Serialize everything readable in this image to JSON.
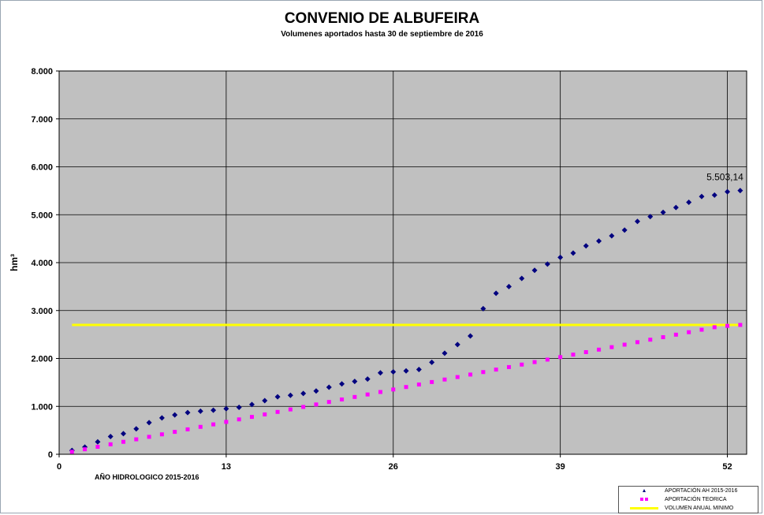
{
  "chart_data": {
    "type": "scatter",
    "title": "CONVENIO DE ALBUFEIRA",
    "subtitle": "Volumenes aportados hasta 30 de septiembre de 2016",
    "ylabel": "hm³",
    "xlabel": "AÑO HIDROLOGICO 2015-2016",
    "xlim": [
      0,
      53.5
    ],
    "ylim": [
      0,
      8000
    ],
    "x_ticks": [
      {
        "value": 0,
        "label": "0"
      },
      {
        "value": 13,
        "label": "13"
      },
      {
        "value": 26,
        "label": "26"
      },
      {
        "value": 39,
        "label": "39"
      },
      {
        "value": 52,
        "label": "52"
      }
    ],
    "y_ticks": [
      {
        "value": 0,
        "label": "0"
      },
      {
        "value": 1000,
        "label": "1.000"
      },
      {
        "value": 2000,
        "label": "2.000"
      },
      {
        "value": 3000,
        "label": "3.000"
      },
      {
        "value": 4000,
        "label": "4.000"
      },
      {
        "value": 5000,
        "label": "5.000"
      },
      {
        "value": 6000,
        "label": "6.000"
      },
      {
        "value": 7000,
        "label": "7.000"
      },
      {
        "value": 8000,
        "label": "8.000"
      }
    ],
    "grid": true,
    "plot_background": "#c0c0c0",
    "annotation": {
      "x": 53,
      "y": 5503.14,
      "text": "5.503,14"
    },
    "series": [
      {
        "name": "APORTACIÓN AH 2015-2016",
        "marker": "diamond",
        "color": "#00007f",
        "x": [
          1,
          2,
          3,
          4,
          5,
          6,
          7,
          8,
          9,
          10,
          11,
          12,
          13,
          14,
          15,
          16,
          17,
          18,
          19,
          20,
          21,
          22,
          23,
          24,
          25,
          26,
          27,
          28,
          29,
          30,
          31,
          32,
          33,
          34,
          35,
          36,
          37,
          38,
          39,
          40,
          41,
          42,
          43,
          44,
          45,
          46,
          47,
          48,
          49,
          50,
          51,
          52,
          53
        ],
        "values": [
          80,
          150,
          260,
          370,
          430,
          530,
          660,
          760,
          820,
          870,
          900,
          920,
          950,
          980,
          1040,
          1120,
          1200,
          1230,
          1270,
          1320,
          1400,
          1470,
          1520,
          1570,
          1700,
          1720,
          1740,
          1770,
          1920,
          2110,
          2290,
          2470,
          3040,
          3360,
          3500,
          3670,
          3840,
          3970,
          4110,
          4200,
          4350,
          4450,
          4560,
          4680,
          4860,
          4960,
          5050,
          5150,
          5260,
          5380,
          5410,
          5480,
          5503.14
        ]
      },
      {
        "name": "APORTACIÓN TEORICA",
        "marker": "square",
        "color": "#ff00ff",
        "x": [
          1,
          2,
          3,
          4,
          5,
          6,
          7,
          8,
          9,
          10,
          11,
          12,
          13,
          14,
          15,
          16,
          17,
          18,
          19,
          20,
          21,
          22,
          23,
          24,
          25,
          26,
          27,
          28,
          29,
          30,
          31,
          32,
          33,
          34,
          35,
          36,
          37,
          38,
          39,
          40,
          41,
          42,
          43,
          44,
          45,
          46,
          47,
          48,
          49,
          50,
          51,
          52,
          53
        ],
        "values": [
          52,
          104,
          156,
          208,
          260,
          312,
          364,
          416,
          468,
          520,
          572,
          624,
          676,
          728,
          780,
          832,
          884,
          936,
          988,
          1040,
          1092,
          1144,
          1196,
          1248,
          1300,
          1352,
          1404,
          1456,
          1508,
          1560,
          1612,
          1664,
          1716,
          1768,
          1820,
          1872,
          1924,
          1976,
          2028,
          2080,
          2132,
          2184,
          2236,
          2288,
          2340,
          2392,
          2444,
          2496,
          2548,
          2600,
          2652,
          2680,
          2700
        ]
      },
      {
        "name": "VOLUMEN ANUAL MINIMO",
        "marker": "line",
        "color": "#ffff00",
        "x": [
          1,
          53
        ],
        "values": [
          2700,
          2700
        ]
      }
    ],
    "legend_position": "bottom-right"
  }
}
